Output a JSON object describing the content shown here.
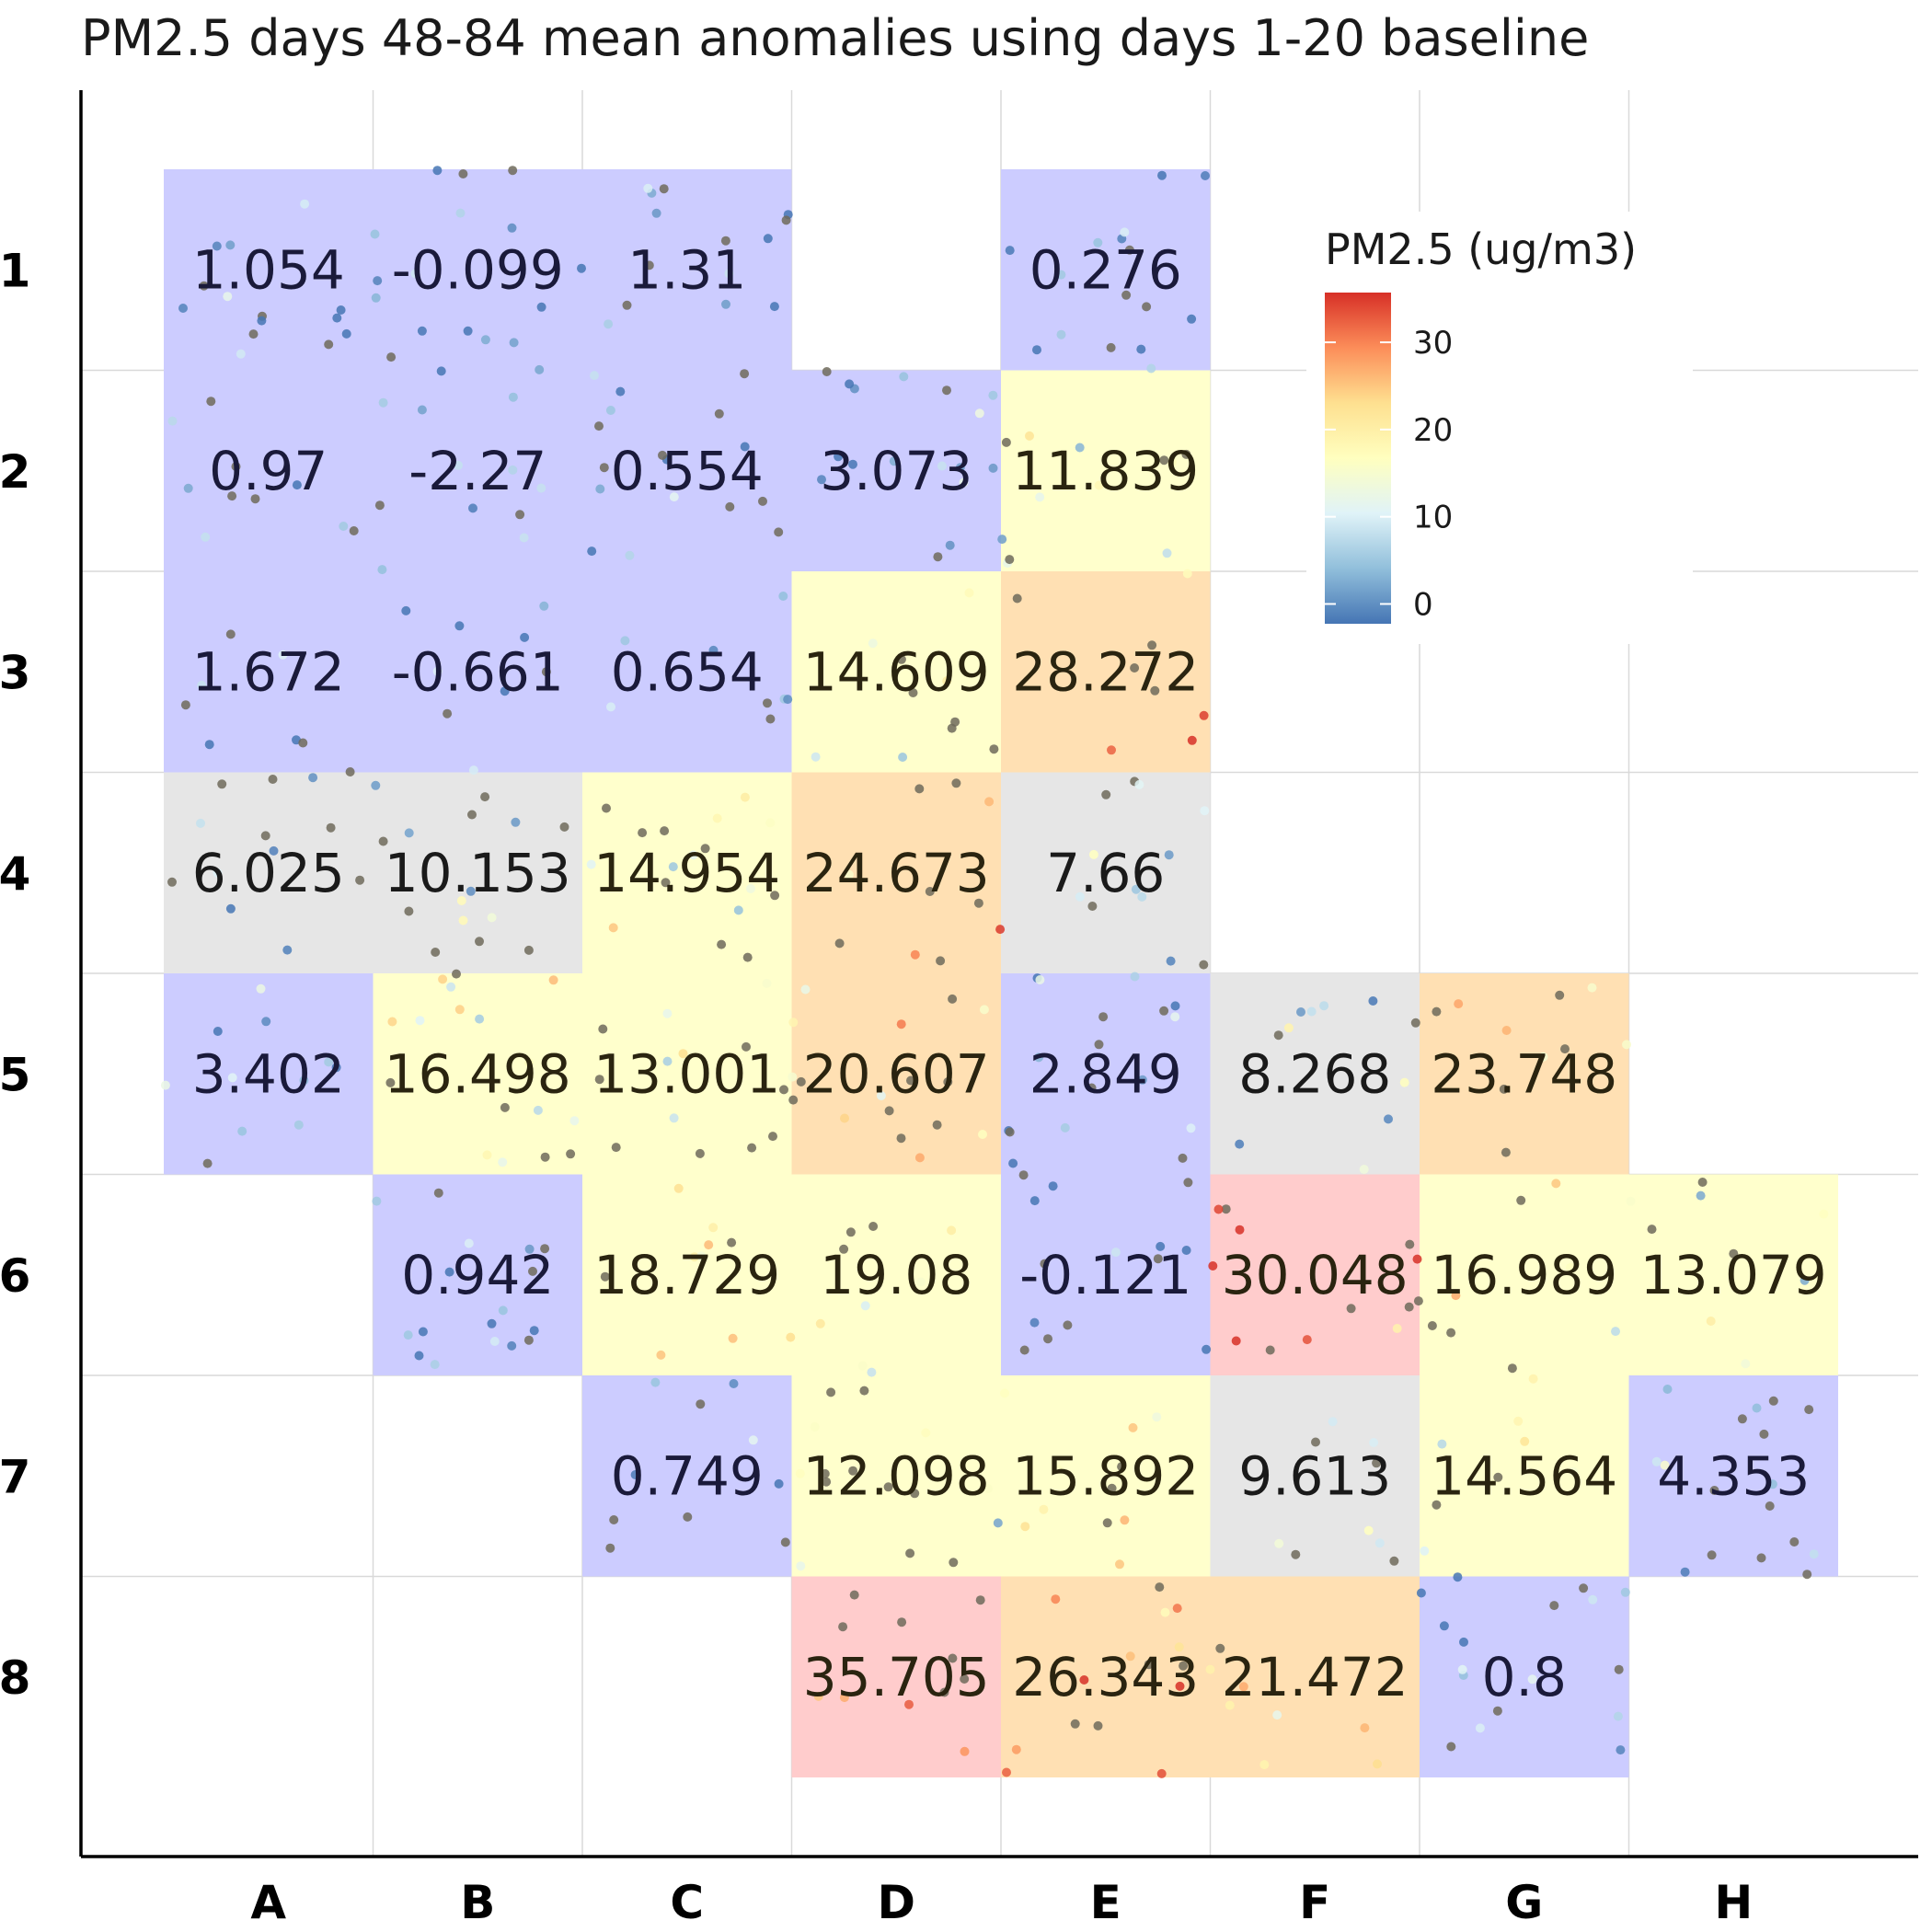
{
  "chart_data": {
    "type": "heatmap",
    "title": "PM2.5 days 48-84 mean anomalies using days 1-20 baseline",
    "columns": [
      "A",
      "B",
      "C",
      "D",
      "E",
      "F",
      "G",
      "H"
    ],
    "rows": [
      "1",
      "2",
      "3",
      "4",
      "5",
      "6",
      "7",
      "8"
    ],
    "cells": [
      {
        "col": "A",
        "row": "1",
        "value": 1.054,
        "label": "1.054"
      },
      {
        "col": "B",
        "row": "1",
        "value": -0.099,
        "label": "-0.099"
      },
      {
        "col": "C",
        "row": "1",
        "value": 1.31,
        "label": "1.31"
      },
      {
        "col": "E",
        "row": "1",
        "value": 0.276,
        "label": "0.276"
      },
      {
        "col": "A",
        "row": "2",
        "value": 0.97,
        "label": "0.97"
      },
      {
        "col": "B",
        "row": "2",
        "value": -2.27,
        "label": "-2.27"
      },
      {
        "col": "C",
        "row": "2",
        "value": 0.554,
        "label": "0.554"
      },
      {
        "col": "D",
        "row": "2",
        "value": 3.073,
        "label": "3.073"
      },
      {
        "col": "E",
        "row": "2",
        "value": 11.839,
        "label": "11.839"
      },
      {
        "col": "A",
        "row": "3",
        "value": 1.672,
        "label": "1.672"
      },
      {
        "col": "B",
        "row": "3",
        "value": -0.661,
        "label": "-0.661"
      },
      {
        "col": "C",
        "row": "3",
        "value": 0.654,
        "label": "0.654"
      },
      {
        "col": "D",
        "row": "3",
        "value": 14.609,
        "label": "14.609"
      },
      {
        "col": "E",
        "row": "3",
        "value": 28.272,
        "label": "28.272"
      },
      {
        "col": "A",
        "row": "4",
        "value": 6.025,
        "label": "6.025"
      },
      {
        "col": "B",
        "row": "4",
        "value": 10.153,
        "label": "10.153"
      },
      {
        "col": "C",
        "row": "4",
        "value": 14.954,
        "label": "14.954"
      },
      {
        "col": "D",
        "row": "4",
        "value": 24.673,
        "label": "24.673"
      },
      {
        "col": "E",
        "row": "4",
        "value": 7.66,
        "label": "7.66"
      },
      {
        "col": "A",
        "row": "5",
        "value": 3.402,
        "label": "3.402"
      },
      {
        "col": "B",
        "row": "5",
        "value": 16.498,
        "label": "16.498"
      },
      {
        "col": "C",
        "row": "5",
        "value": 13.001,
        "label": "13.001"
      },
      {
        "col": "D",
        "row": "5",
        "value": 20.607,
        "label": "20.607"
      },
      {
        "col": "E",
        "row": "5",
        "value": 2.849,
        "label": "2.849"
      },
      {
        "col": "F",
        "row": "5",
        "value": 8.268,
        "label": "8.268"
      },
      {
        "col": "G",
        "row": "5",
        "value": 23.748,
        "label": "23.748"
      },
      {
        "col": "B",
        "row": "6",
        "value": 0.942,
        "label": "0.942"
      },
      {
        "col": "C",
        "row": "6",
        "value": 18.729,
        "label": "18.729"
      },
      {
        "col": "D",
        "row": "6",
        "value": 19.08,
        "label": "19.08"
      },
      {
        "col": "E",
        "row": "6",
        "value": -0.121,
        "label": "-0.121"
      },
      {
        "col": "F",
        "row": "6",
        "value": 30.048,
        "label": "30.048"
      },
      {
        "col": "G",
        "row": "6",
        "value": 16.989,
        "label": "16.989"
      },
      {
        "col": "H",
        "row": "6",
        "value": 13.079,
        "label": "13.079"
      },
      {
        "col": "C",
        "row": "7",
        "value": 0.749,
        "label": "0.749"
      },
      {
        "col": "D",
        "row": "7",
        "value": 12.098,
        "label": "12.098"
      },
      {
        "col": "E",
        "row": "7",
        "value": 15.892,
        "label": "15.892"
      },
      {
        "col": "F",
        "row": "7",
        "value": 9.613,
        "label": "9.613"
      },
      {
        "col": "G",
        "row": "7",
        "value": 14.564,
        "label": "14.564"
      },
      {
        "col": "H",
        "row": "7",
        "value": 4.353,
        "label": "4.353"
      },
      {
        "col": "D",
        "row": "8",
        "value": 35.705,
        "label": "35.705"
      },
      {
        "col": "E",
        "row": "8",
        "value": 26.343,
        "label": "26.343"
      },
      {
        "col": "F",
        "row": "8",
        "value": 21.472,
        "label": "21.472"
      },
      {
        "col": "G",
        "row": "8",
        "value": 0.8,
        "label": "0.8"
      }
    ],
    "legend": {
      "title": "PM2.5 (ug/m3)",
      "placement": "top-right",
      "range": [
        -2.27,
        35.705
      ],
      "ticks": [
        0,
        10,
        20,
        30
      ],
      "colormap": [
        "#4575b4",
        "#91bfdb",
        "#e0f3f8",
        "#ffffbf",
        "#fee090",
        "#fc8d59",
        "#d73027"
      ]
    },
    "cell_colors": {
      "cool": "#ccccff",
      "neutral": "#e6e6e6",
      "mild": "#ffffcc",
      "warm": "#ffe0b3",
      "hot": "#ffcccc"
    },
    "grid": true,
    "scatter_overlay": true
  }
}
